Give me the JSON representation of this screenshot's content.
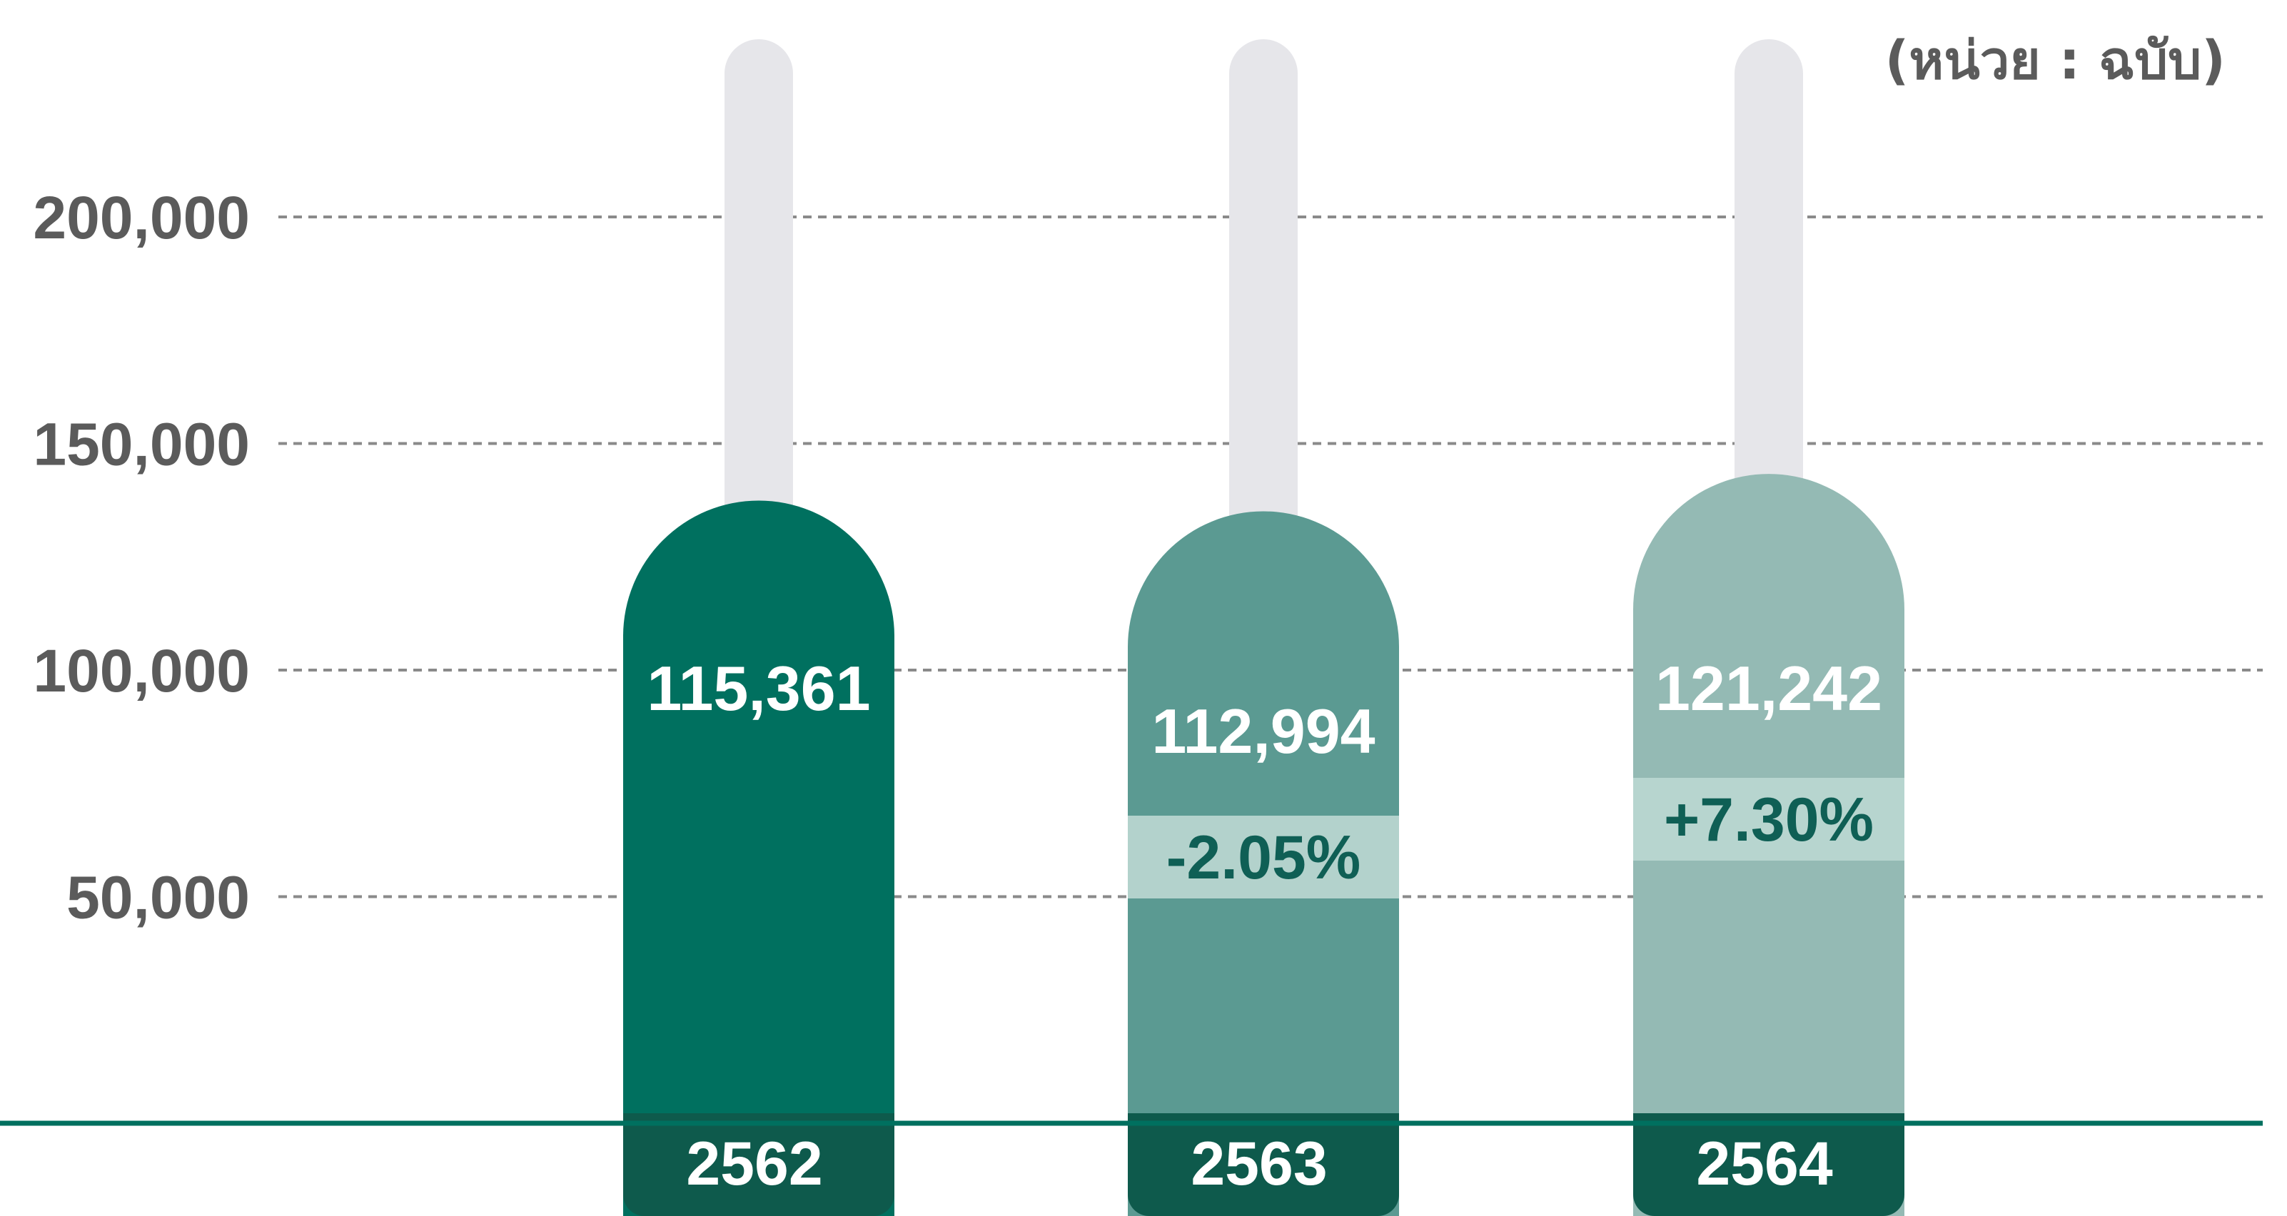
{
  "chart_data": {
    "type": "bar",
    "unit_label": "(หน่วย : ฉบับ)",
    "categories": [
      "2562",
      "2563",
      "2564"
    ],
    "values": [
      115361,
      112994,
      121242
    ],
    "value_labels": [
      "115,361",
      "112,994",
      "121,242"
    ],
    "changes": [
      "",
      "-2.05%",
      "+7.30%"
    ],
    "ylim": [
      0,
      237000
    ],
    "yticks": [
      50000,
      100000,
      150000,
      200000
    ],
    "ytick_labels": [
      "50,000",
      "100,000",
      "150,000",
      "200,000"
    ],
    "grid": true,
    "colors": {
      "bars": [
        "#00705f",
        "#5b9a92",
        "#94bab4"
      ],
      "track": "#e6e6ea",
      "change_band": [
        "",
        "#b3d2cc",
        "#b7d5cf"
      ],
      "category_band": "#0e5a4c",
      "baseline": "#00705f",
      "grid": "#8a8a8a"
    }
  }
}
